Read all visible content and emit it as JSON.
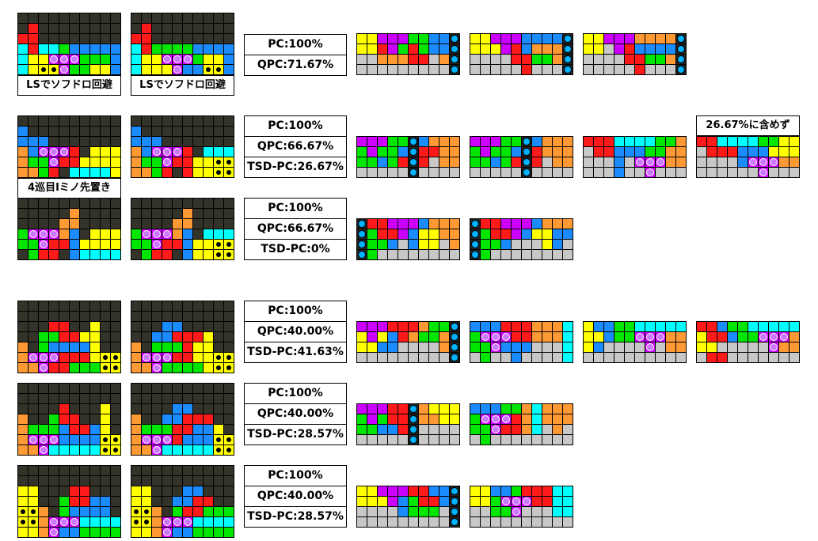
{
  "colors": {
    "G": "#33332a",
    "Y": "#ffff00",
    "C": "#00ffff",
    "R": "#ff1a1a",
    "P": "#cc00ff",
    "B": "#1a8cff",
    "O": "#ff9933",
    "N": "#00e600",
    "S": "#c8c8c8",
    "W": "#ffffff",
    "purple_marker": "#cc77ff",
    "black_marker": "#000000",
    "blue_marker": "#00b3ff"
  },
  "labels": {
    "ls1": "LSでソフドロ回避",
    "ls2": "LSでソフドロ回避",
    "first_iter": "4巡目Iミノ先置き",
    "excluded": "26.67%に含めず"
  },
  "stats": [
    [
      "PC:100%",
      "QPC:71.67%"
    ],
    [
      "PC:100%",
      "QPC:66.67%",
      "TSD-PC:26.67%"
    ],
    [
      "PC:100%",
      "QPC:66.67%",
      "TSD-PC:0%"
    ],
    [
      "PC:100%",
      "QPC:40.00%",
      "TSD-PC:41.63%"
    ],
    [
      "PC:100%",
      "QPC:40.00%",
      "TSD-PC:28.57%"
    ],
    [
      "PC:100%",
      "QPC:40.00%",
      "TSD-PC:28.57%"
    ]
  ],
  "boards": {
    "r1a": [
      "GGGGGGGGGG",
      "GRGGGGGGGG",
      "RRGGGGGGGG",
      "CRCCNBBBBB",
      "CYYqqqNNNB",
      "CYkkqNNYYB",
      "CYkkOOOYYB"
    ],
    "r1b": [
      "GGGGGGGGGG",
      "GRGGGGGGGG",
      "RRGGGGGGGG",
      "CRNNNNBBBB",
      "CYYqqqNYYB",
      "CYYYqBBkkB",
      "CYYOOOOkkB"
    ],
    "r2a": [
      "GGGGGGGGGG",
      "BGGGGGGGGG",
      "BBBGGGGGGG",
      "OBqqqRGYYY",
      "ONNqRRYYYY",
      "OONRGCCCCY"
    ],
    "r2b": [
      "GGGGGGGGGG",
      "BGGGGGGGGG",
      "BBBGGGGGGG",
      "OBqqqRGCCC",
      "ONNqRRYYkk",
      "OONRGRYYkk"
    ],
    "r3a": [
      "GGGGGGGGGG",
      "GGGGGOGGGG",
      "GGGGOOGGGG",
      "NqqqOBGYYY",
      "NNqRRBYYYY",
      "GNRRGBCCCC"
    ],
    "r3b": [
      "GGGGGGGGGG",
      "GGGGGOGGGG",
      "GGGGOOGGGG",
      "NqqqOBGCCC",
      "NNqRRBYYkk",
      "GNRRGBYYkk"
    ],
    "r4a": [
      "GGGGGGGGGG",
      "GGGGGGGGGG",
      "GGGRRGGYGG",
      "GGNNRRYYGG",
      "OGNBBBBYGG",
      "OqqqRRRYkk",
      "OOqRRNNNkk"
    ],
    "r4b": [
      "GGGGGGGGGG",
      "GGGGGGGGGG",
      "GGGBBGGGGG",
      "GGBBRRRYGG",
      "OGNNNRYYGG",
      "OqqqRRYYkk",
      "OOqNNNNYkk"
    ],
    "r5a": [
      "GGGGGGGGGG",
      "GGGGGGGGGG",
      "GGGGRGGGYG",
      "OGGNRRGGYG",
      "ONNNBRRBYG",
      "OqqqBBBBkk",
      "OOqCCCCCkk"
    ],
    "r5b": [
      "GGGGGGGGGG",
      "GGGGGGGGGG",
      "GGGGBBGGGG",
      "OGGBBRRRGG",
      "ONNNRRBBYG",
      "OqqqRBBBkk",
      "OOqCCCCCkk"
    ],
    "r6a": [
      "GGGGGGGGGG",
      "GGGGGGGGGG",
      "YYGGGRRGGG",
      "YYGGNRRBBG",
      "kkOGNBBBBG",
      "kkOqqqCCCC",
      "YYOqBBNNNN"
    ],
    "r6b": [
      "GGGGGGGGGG",
      "GGGGGGGGGG",
      "YYGGGBBGGG",
      "YYGGBBRRGG",
      "kkOGNRRNNN",
      "kkOqqqCCCC",
      "YYOqBBNNNN"
    ],
    "p1a": [
      "YYPPPNNBBm",
      "YYRPNRNBBm",
      "SSOOORRSOm",
      "SSSSSSSSSm"
    ],
    "p1b": [
      "YYPPPBBBBm",
      "YYYPRBOOOm",
      "SSSSRRNNOm",
      "SSSSSRSSSm"
    ],
    "p1c": [
      "YYPPPOOOOm",
      "YYSPRBBBBm",
      "SSSSRRNNOm",
      "SSSSSRSSSm"
    ],
    "p2a": [
      "PPPNNmBOOO",
      "NPNNBmRROO",
      "NNBNRmRSOO",
      "SSSSSmSSSS"
    ],
    "p2b": [
      "PPPNNmBOOO",
      "NPNNBmROOO",
      "NNBNRmRSOO",
      "SSSSSmSSSS"
    ],
    "p2c": [
      "RRRCCCCNNO",
      "SRRBBBNNOO",
      "SSSBSqqqOO",
      "SSSBSSqSSS"
    ],
    "p2d": [
      "RRCCCCNNYY",
      "SRRRBBBYYY",
      "SSSSBqqqOO",
      "SSSSSSqSSS"
    ],
    "p3a": [
      "mRRPPPBOOO",
      "mNRRPBYYOO",
      "mNNBSBYYSO",
      "mNSSSSSSSS"
    ],
    "p3b": [
      "mRRPPPBOOO",
      "mNRRPBYYBB",
      "mNNBSSSYBS",
      "mNSSSSSSSS"
    ],
    "p4a": [
      "PPPRRRONNm",
      "YPYBRONNOm",
      "YYBBSSSSOm",
      "SSSSSSSSSm"
    ],
    "p4b": [
      "BBBRRROOOC",
      "NqqqRROOOC",
      "NNqBBBSSSC",
      "SNSSBSSSSC"
    ],
    "p4c": [
      "YBBNNCCCCC",
      "YYBNNqqqOO",
      "YBSSSSqSOO",
      "SSSSSSSSSS"
    ],
    "p4d": [
      "RRBNNCCCCC",
      "YRRBNNqqqO",
      "YYSSSSSqOO",
      "SRRSSSSSSS"
    ],
    "p5a": [
      "PPPRRmOYYY",
      "NPNRRmOOYY",
      "NNBBRmSSSS",
      "SSSSSmSSSS"
    ],
    "p5b": [
      "BBBNNOCOOO",
      "NqqqROCOOO",
      "NNqRROCSOS",
      "SNSSSSSSSS"
    ],
    "p6a": [
      "YYPPPRRBBm",
      "YYYPBNRRBm",
      "SSSSBNNNSm",
      "SSSSSSSSSm"
    ],
    "p6b": [
      "YYBBNRRRCC",
      "YYNqqqRRCC",
      "SSNNqSSSCC",
      "SSSSSSSSSS"
    ]
  }
}
